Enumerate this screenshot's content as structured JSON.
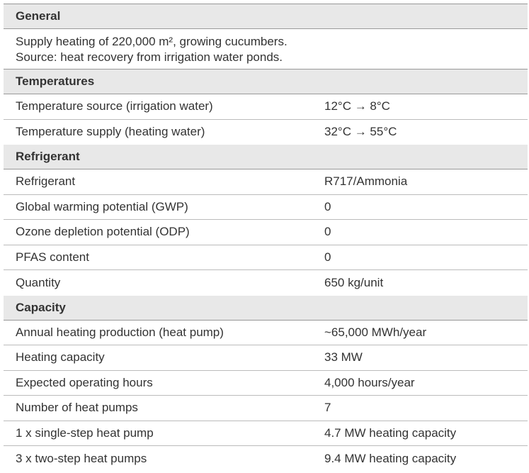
{
  "sections": [
    {
      "title": "General",
      "text": [
        "Supply heating of 220,000 m², growing cucumbers.",
        "Source: heat recovery from irrigation water ponds."
      ]
    },
    {
      "title": "Temperatures",
      "rows": [
        [
          "Temperature source (irrigation water)",
          "12°C → 8°C"
        ],
        [
          "Temperature supply (heating water)",
          "32°C → 55°C"
        ]
      ]
    },
    {
      "title": "Refrigerant",
      "rows": [
        [
          "Refrigerant",
          "R717/Ammonia"
        ],
        [
          "Global warming potential (GWP)",
          "0"
        ],
        [
          "Ozone depletion potential (ODP)",
          "0"
        ],
        [
          "PFAS content",
          "0"
        ],
        [
          "Quantity",
          "650 kg/unit"
        ]
      ]
    },
    {
      "title": "Capacity",
      "rows": [
        [
          "Annual heating production (heat pump)",
          "~65,000 MWh/year"
        ],
        [
          "Heating capacity",
          "33 MW"
        ],
        [
          "Expected operating hours",
          "4,000 hours/year"
        ],
        [
          "Number of heat pumps",
          "7"
        ],
        [
          "1 x single-step heat pump",
          "4.7 MW heating capacity"
        ],
        [
          "3 x two-step heat pumps",
          "9.4 MW heating capacity"
        ]
      ]
    }
  ]
}
